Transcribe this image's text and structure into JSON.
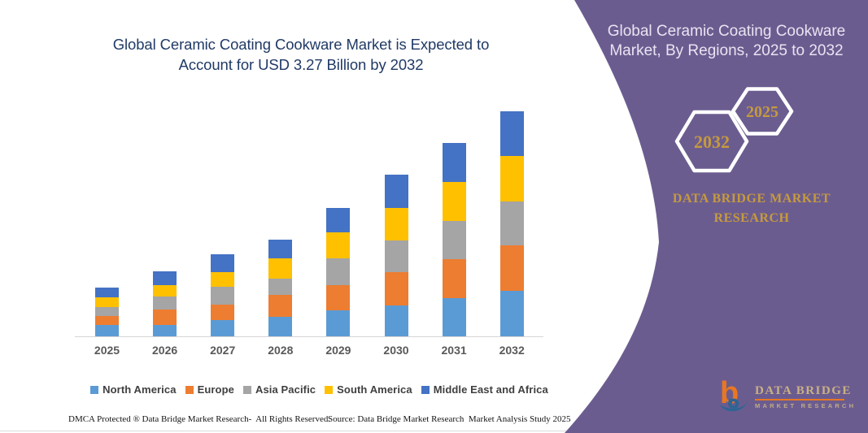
{
  "chart": {
    "title_line1": "Global Ceramic Coating Cookware Market is Expected to",
    "title_line2": "Account for USD 3.27 Billion by 2032",
    "title_color": "#203A66"
  },
  "chart_data": {
    "type": "bar",
    "stacked": true,
    "title": "Global Ceramic Coating Cookware Market is Expected to Account for USD 3.27 Billion by 2032",
    "unit": "USD Billion",
    "categories": [
      "2025",
      "2026",
      "2027",
      "2028",
      "2029",
      "2030",
      "2031",
      "2032"
    ],
    "series": [
      {
        "name": "North America",
        "color": "#5B9BD5",
        "values": [
          0.16,
          0.17,
          0.24,
          0.28,
          0.38,
          0.45,
          0.56,
          0.66
        ]
      },
      {
        "name": "Europe",
        "color": "#ED7D31",
        "values": [
          0.13,
          0.22,
          0.22,
          0.32,
          0.36,
          0.48,
          0.56,
          0.66
        ]
      },
      {
        "name": "Asia Pacific",
        "color": "#A5A5A5",
        "values": [
          0.14,
          0.19,
          0.26,
          0.24,
          0.39,
          0.46,
          0.56,
          0.64
        ]
      },
      {
        "name": "South America",
        "color": "#FFC000",
        "values": [
          0.14,
          0.16,
          0.22,
          0.3,
          0.38,
          0.48,
          0.57,
          0.66
        ]
      },
      {
        "name": "Middle East and Africa",
        "color": "#4472C4",
        "values": [
          0.14,
          0.21,
          0.25,
          0.27,
          0.36,
          0.48,
          0.56,
          0.65
        ]
      }
    ],
    "totals": [
      0.71,
      0.95,
      1.19,
      1.41,
      1.87,
      2.35,
      2.81,
      3.27
    ],
    "xlabel": "",
    "ylabel": "",
    "grid": false,
    "y_axis_visible": false,
    "legend_position": "bottom"
  },
  "footer": {
    "left": "DMCA Protected ® Data Bridge Market Research-  All Rights Reserved.",
    "source": "Source: Data Bridge Market Research  Market Analysis Study 2025"
  },
  "panel": {
    "title_line1": "Global Ceramic Coating Cookware",
    "title_line2": "Market, By Regions, 2025 to 2032",
    "hexagon_back_label": "2032",
    "hexagon_front_label": "2025",
    "brand_heading": "DATA BRIDGE MARKET RESEARCH",
    "logo_title": "DATA BRIDGE",
    "logo_subtitle": "MARKET RESEARCH",
    "background_color": "#6B5C90",
    "gold": "#C59A3D"
  }
}
